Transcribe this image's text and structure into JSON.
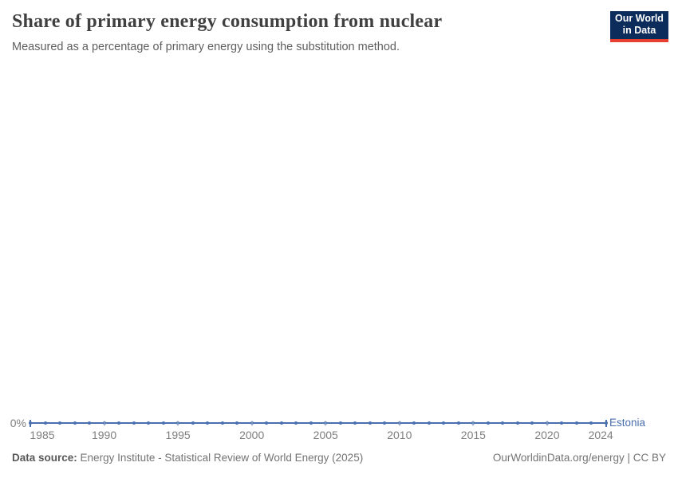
{
  "header": {
    "title": "Share of primary energy consumption from nuclear",
    "subtitle": "Measured as a percentage of primary energy using the substitution method.",
    "logo": {
      "line1": "Our World",
      "line2": "in Data"
    }
  },
  "chart": {
    "y_zero_label": "0%",
    "series_label": "Estonia"
  },
  "chart_data": {
    "type": "line",
    "title": "Share of primary energy consumption from nuclear",
    "subtitle": "Measured as a percentage of primary energy using the substitution method.",
    "xlabel": "",
    "ylabel": "",
    "xlim": [
      1985,
      2024
    ],
    "x_ticks": [
      "1985",
      "1990",
      "1995",
      "2000",
      "2005",
      "2010",
      "2015",
      "2020",
      "2024"
    ],
    "grid": false,
    "legend_position": "end-of-line",
    "series": [
      {
        "name": "Estonia",
        "x": [
          1985,
          1986,
          1987,
          1988,
          1989,
          1990,
          1991,
          1992,
          1993,
          1994,
          1995,
          1996,
          1997,
          1998,
          1999,
          2000,
          2001,
          2002,
          2003,
          2004,
          2005,
          2006,
          2007,
          2008,
          2009,
          2010,
          2011,
          2012,
          2013,
          2014,
          2015,
          2016,
          2017,
          2018,
          2019,
          2020,
          2021,
          2022,
          2023,
          2024
        ],
        "values": [
          0,
          0,
          0,
          0,
          0,
          0,
          0,
          0,
          0,
          0,
          0,
          0,
          0,
          0,
          0,
          0,
          0,
          0,
          0,
          0,
          0,
          0,
          0,
          0,
          0,
          0,
          0,
          0,
          0,
          0,
          0,
          0,
          0,
          0,
          0,
          0,
          0,
          0,
          0,
          0
        ],
        "unit": "%"
      }
    ],
    "colors": {
      "line": "#4a6fae",
      "axis_tick": "#a3b1c9",
      "tick_label": "#7e7e7e"
    }
  },
  "footer": {
    "source_label": "Data source:",
    "source_text": "Energy Institute - Statistical Review of World Energy (2025)",
    "credit": "OurWorldinData.org/energy | CC BY"
  },
  "brand_colors": {
    "logo_background": "#0c2d5b",
    "logo_stripe": "#e63e31"
  }
}
